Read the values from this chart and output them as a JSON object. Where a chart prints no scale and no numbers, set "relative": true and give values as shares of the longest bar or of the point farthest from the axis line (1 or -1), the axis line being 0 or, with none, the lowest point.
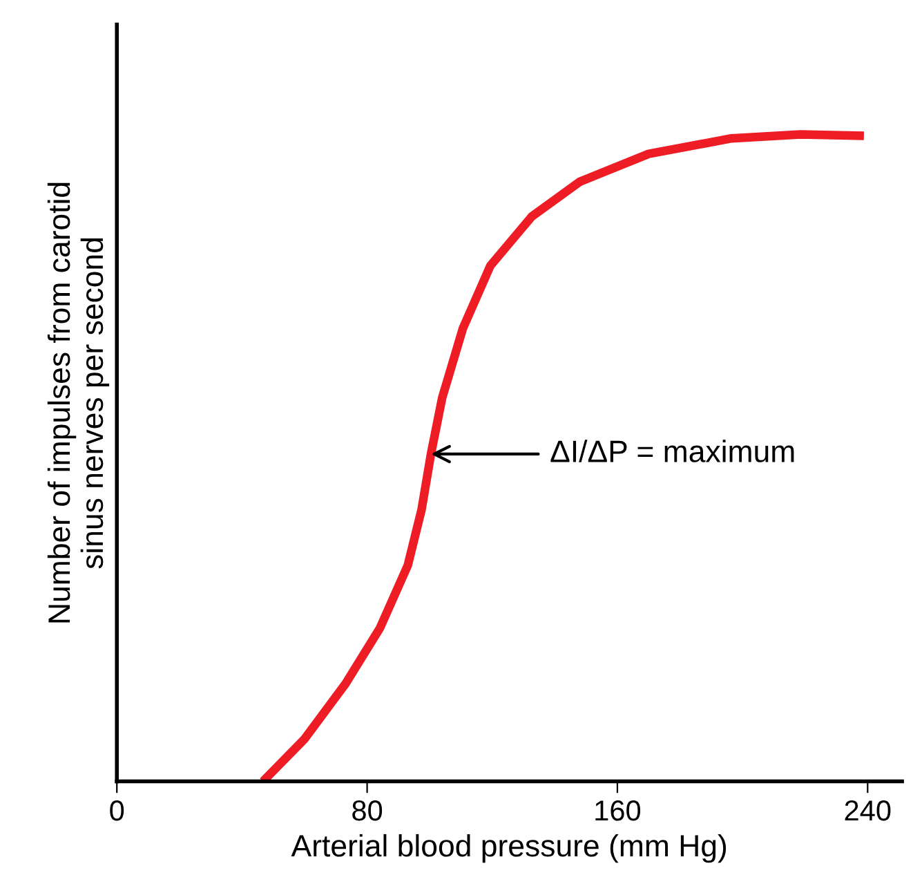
{
  "chart_data": {
    "type": "line",
    "relative": true,
    "xlabel": "Arterial blood pressure (mm Hg)",
    "ylabel": "Number of impulses from carotid\nsinus nerves per second",
    "xlim": [
      0,
      251
    ],
    "xticks": [
      0,
      80,
      160,
      240
    ],
    "grid": false,
    "legend": false,
    "marker": "none",
    "line_style": "solid",
    "tick_labels": "x",
    "series": [
      {
        "color": "#ee1c25",
        "x": [
          46.7,
          59.9,
          73.1,
          84.1,
          93.0,
          97.4,
          100.4,
          104.0,
          110.6,
          119.4,
          132.6,
          148.0,
          170.0,
          196.5,
          218.5,
          238.8
        ],
        "values": [
          0,
          0.065,
          0.151,
          0.237,
          0.334,
          0.42,
          0.506,
          0.593,
          0.7,
          0.797,
          0.873,
          0.927,
          0.97,
          0.994,
          1.0,
          0.998
        ]
      }
    ],
    "annotations": [
      {
        "text": "ΔI/ΔP = maximum",
        "x": 100.4,
        "y": 0.506
      }
    ]
  }
}
